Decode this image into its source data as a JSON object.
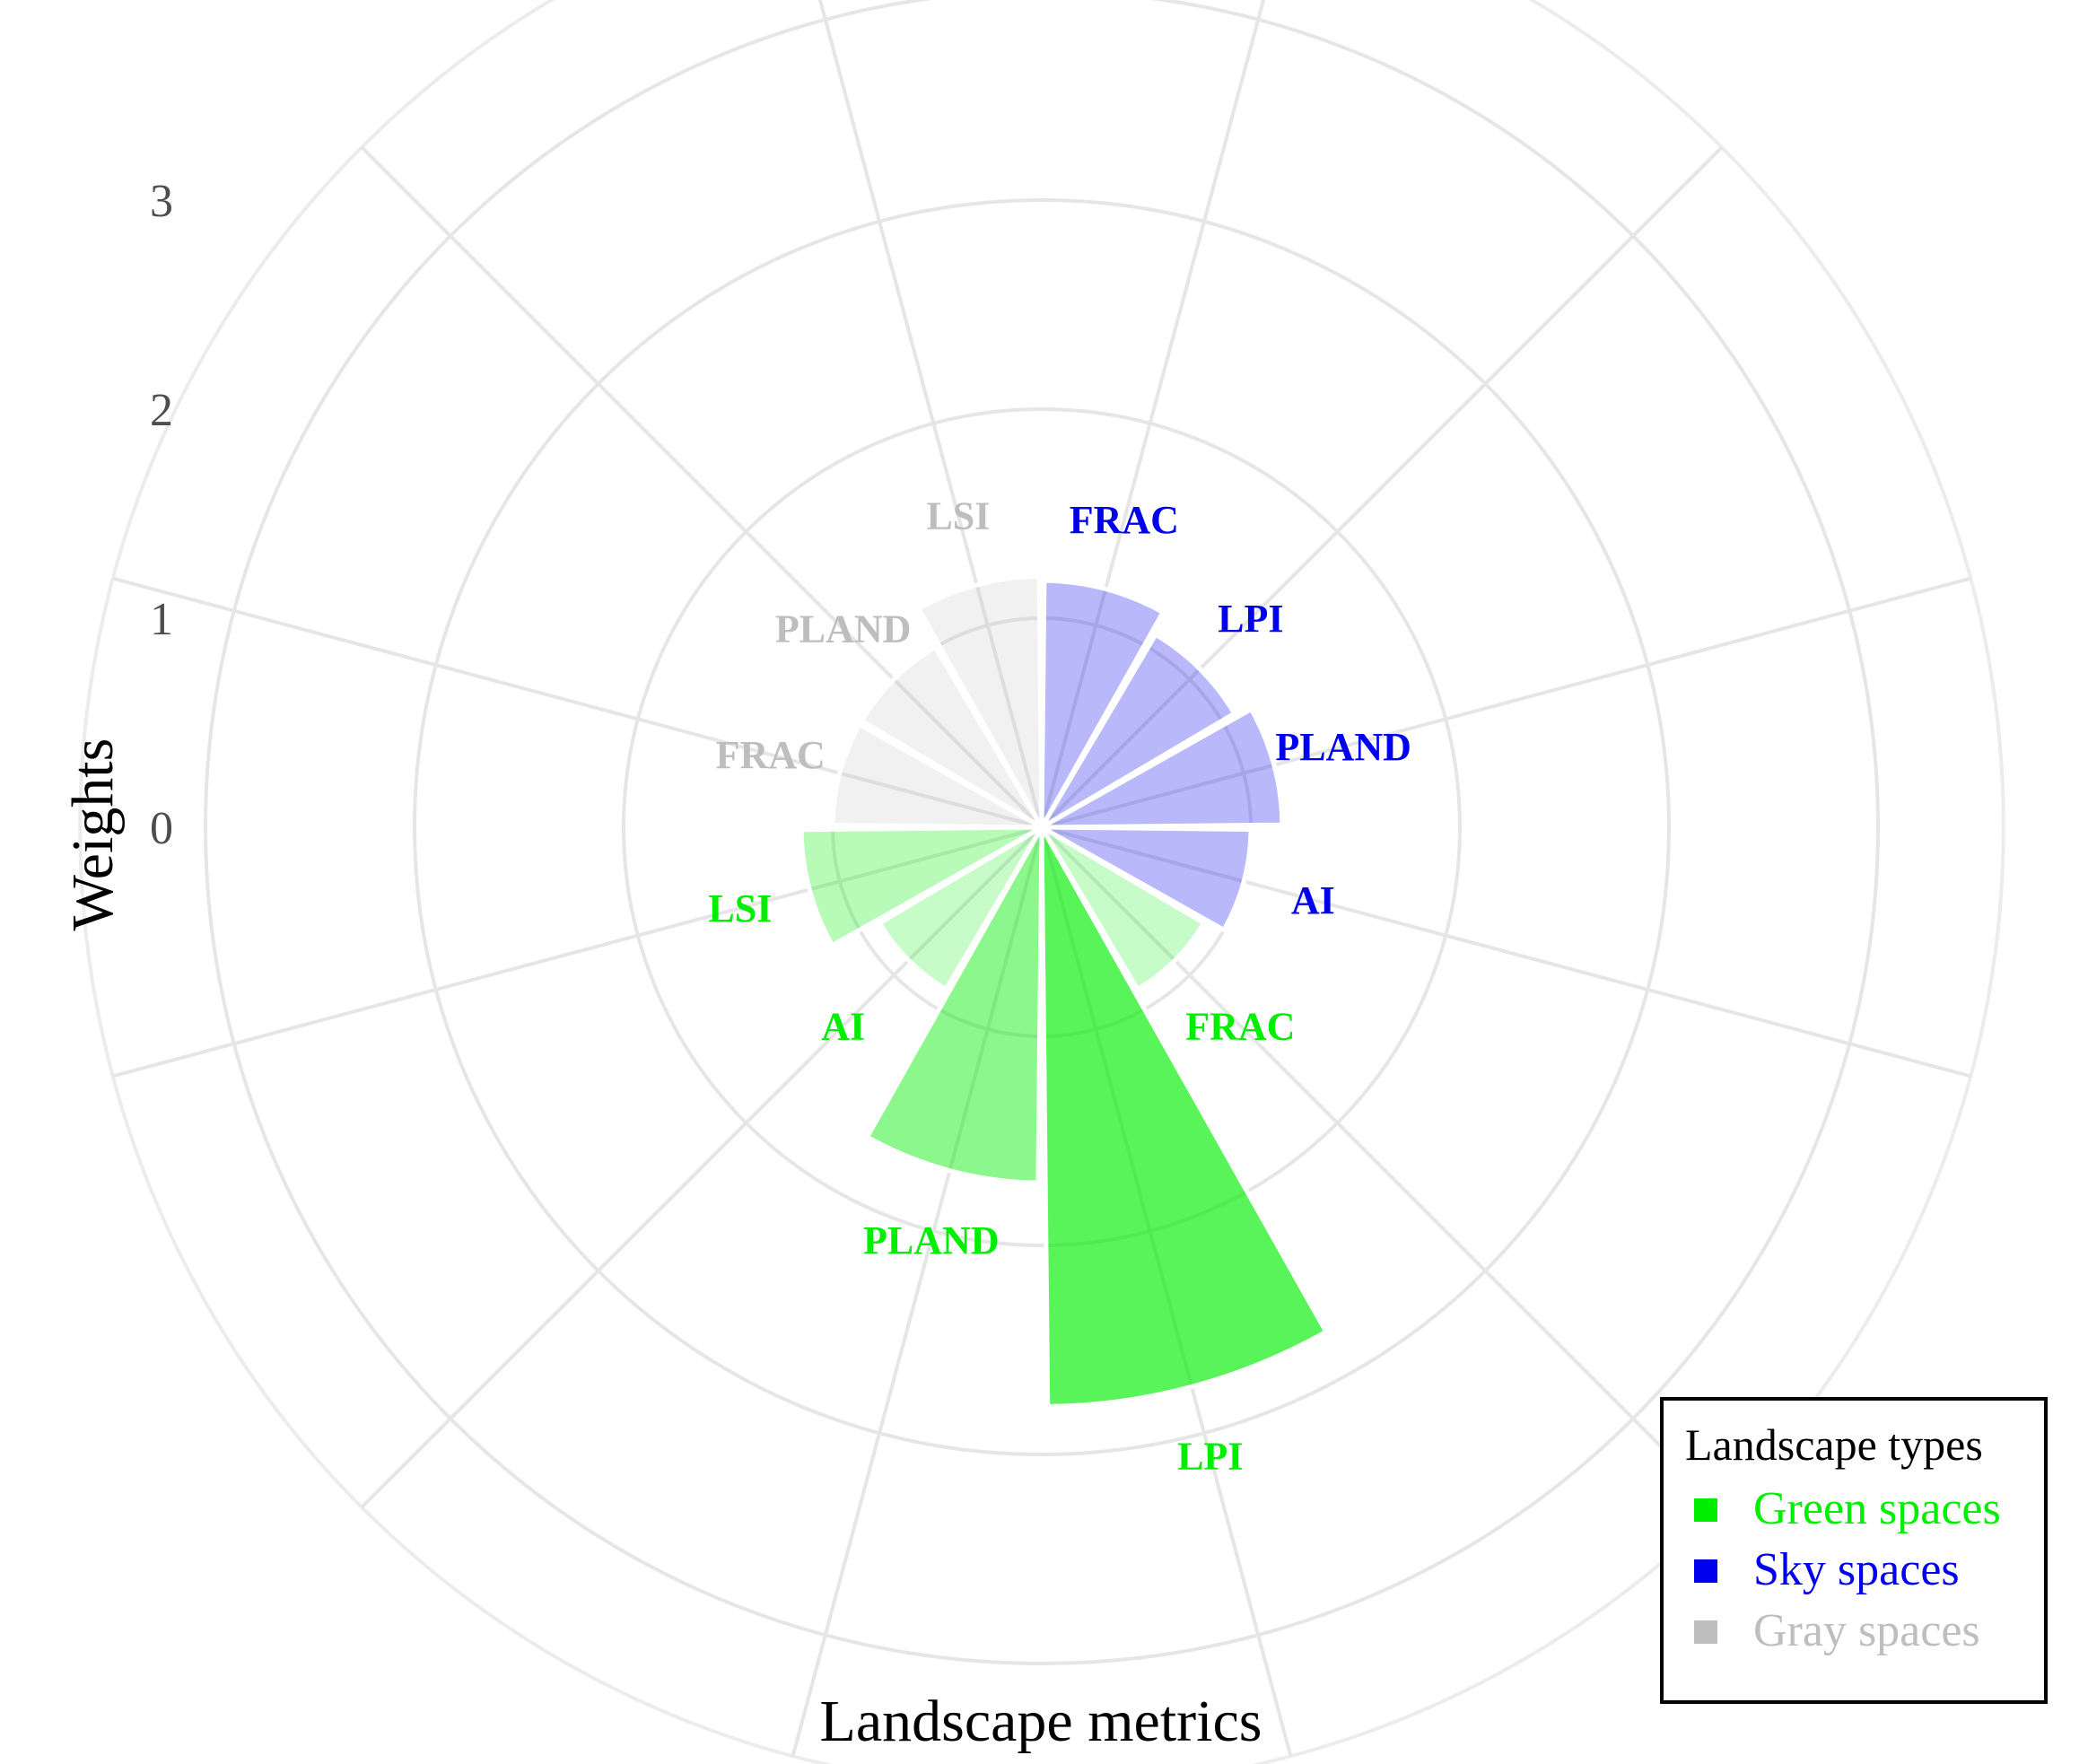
{
  "chart_data": {
    "type": "bar",
    "coordinate_system": "polar",
    "xlabel": "Landscape metrics",
    "ylabel": "Weights",
    "ylim": [
      -1,
      3.6
    ],
    "y_ticks": [
      0,
      1,
      2,
      3
    ],
    "grid": true,
    "legend": {
      "title": "Landscape types",
      "placement": "bottom-right",
      "entries": [
        {
          "label": "Green spaces",
          "color": "#00ee00"
        },
        {
          "label": "Sky spaces",
          "color": "#0000ee"
        },
        {
          "label": "Gray spaces",
          "color": "#bebebe"
        }
      ]
    },
    "bars": [
      {
        "group": "Sky spaces",
        "metric": "FRAC",
        "value": 0.18,
        "opacity": 0.28
      },
      {
        "group": "Sky spaces",
        "metric": "LPI",
        "value": 0.07,
        "opacity": 0.28
      },
      {
        "group": "Sky spaces",
        "metric": "PLAND",
        "value": 0.15,
        "opacity": 0.28
      },
      {
        "group": "Sky spaces",
        "metric": "AI",
        "value": 0.0,
        "opacity": 0.28
      },
      {
        "group": "Green spaces",
        "metric": "FRAC",
        "value": -0.1,
        "opacity": 0.22
      },
      {
        "group": "Green spaces",
        "metric": "LPI",
        "value": 1.77,
        "opacity": 0.65
      },
      {
        "group": "Green spaces",
        "metric": "PLAND",
        "value": 0.7,
        "opacity": 0.45
      },
      {
        "group": "Green spaces",
        "metric": "AI",
        "value": -0.1,
        "opacity": 0.22
      },
      {
        "group": "Green spaces",
        "metric": "LSI",
        "value": 0.15,
        "opacity": 0.28
      },
      {
        "group": "Gray spaces",
        "metric": "FRAC",
        "value": 0.0,
        "opacity": 0.22
      },
      {
        "group": "Gray spaces",
        "metric": "PLAND",
        "value": 0.0,
        "opacity": 0.22
      },
      {
        "group": "Gray spaces",
        "metric": "LSI",
        "value": 0.2,
        "opacity": 0.22
      }
    ]
  }
}
